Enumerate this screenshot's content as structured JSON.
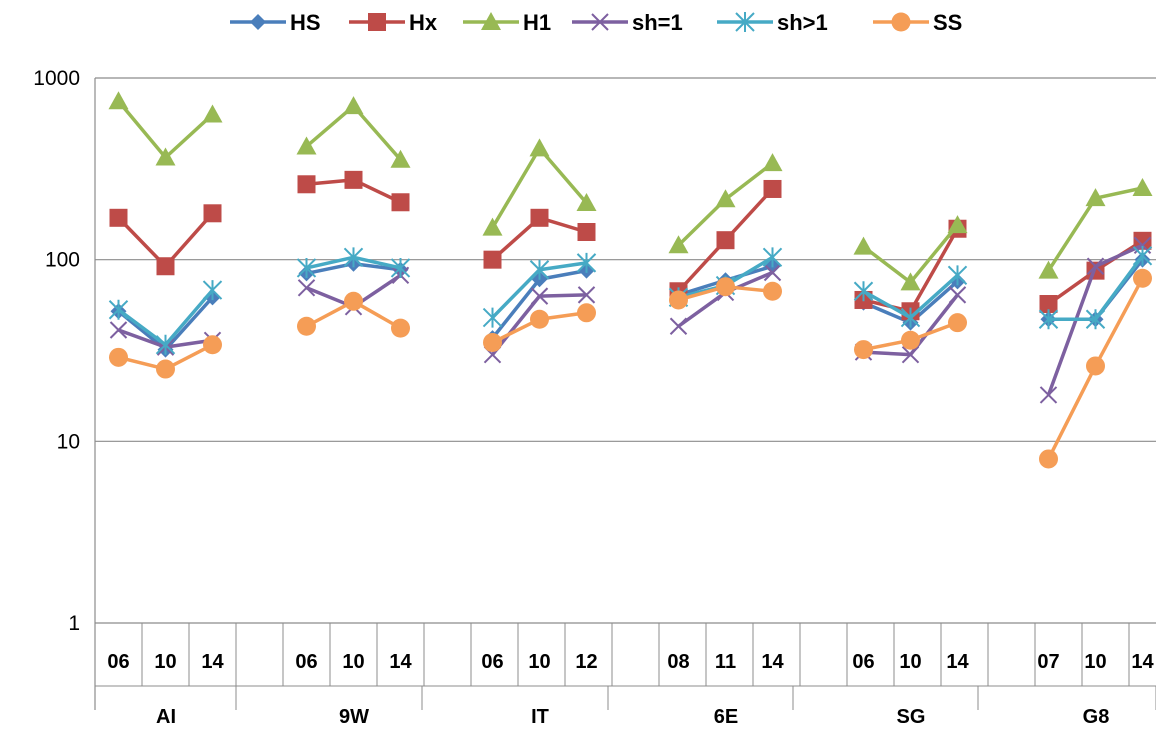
{
  "chart_data": {
    "type": "line",
    "y_scale": "log",
    "ylim": [
      1,
      1000
    ],
    "y_ticks": [
      "1",
      "10",
      "100",
      "1000"
    ],
    "grid": true,
    "legend_position": "top",
    "groups": [
      {
        "label": "AI",
        "years": [
          "06",
          "10",
          "14"
        ]
      },
      {
        "label": "9W",
        "years": [
          "06",
          "10",
          "14"
        ]
      },
      {
        "label": "IT",
        "years": [
          "06",
          "10",
          "12"
        ]
      },
      {
        "label": "6E",
        "years": [
          "08",
          "11",
          "14"
        ]
      },
      {
        "label": "SG",
        "years": [
          "06",
          "10",
          "14"
        ]
      },
      {
        "label": "G8",
        "years": [
          "07",
          "10",
          "14"
        ]
      }
    ],
    "series": [
      {
        "name": "HS",
        "color": "#4a7ebb",
        "marker": "diamond",
        "values": [
          [
            52,
            32,
            62
          ],
          [
            84,
            95,
            88
          ],
          [
            37,
            78,
            87
          ],
          [
            64,
            77,
            92
          ],
          [
            58,
            45,
            76
          ],
          [
            47,
            47,
            100
          ]
        ]
      },
      {
        "name": "Hx",
        "color": "#be4b48",
        "marker": "square",
        "values": [
          [
            170,
            92,
            180
          ],
          [
            260,
            275,
            207
          ],
          [
            100,
            170,
            142
          ],
          [
            67,
            128,
            245
          ],
          [
            60,
            52,
            148
          ],
          [
            57,
            87,
            127
          ]
        ]
      },
      {
        "name": "H1",
        "color": "#98b954",
        "marker": "triangle",
        "values": [
          [
            745,
            365,
            630
          ],
          [
            420,
            700,
            355
          ],
          [
            150,
            410,
            205
          ],
          [
            120,
            215,
            340
          ],
          [
            118,
            75,
            155
          ],
          [
            87,
            218,
            248
          ]
        ]
      },
      {
        "name": "sh=1",
        "color": "#7d60a0",
        "marker": "x",
        "values": [
          [
            41,
            33,
            36
          ],
          [
            70,
            55,
            82
          ],
          [
            30,
            63,
            64
          ],
          [
            43,
            66,
            85
          ],
          [
            31,
            30,
            64
          ],
          [
            18,
            92,
            120
          ]
        ]
      },
      {
        "name": "sh>1",
        "color": "#46aac5",
        "marker": "star",
        "values": [
          [
            53,
            34,
            68
          ],
          [
            90,
            103,
            90
          ],
          [
            48,
            88,
            96
          ],
          [
            62,
            72,
            103
          ],
          [
            67,
            48,
            82
          ],
          [
            47,
            47,
            105
          ]
        ]
      },
      {
        "name": "SS",
        "color": "#f59d56",
        "marker": "circle",
        "values": [
          [
            29,
            25,
            34
          ],
          [
            43,
            59,
            42
          ],
          [
            35,
            47,
            51
          ],
          [
            60,
            71,
            67
          ],
          [
            32,
            36,
            45
          ],
          [
            8,
            26,
            79
          ]
        ]
      }
    ]
  }
}
